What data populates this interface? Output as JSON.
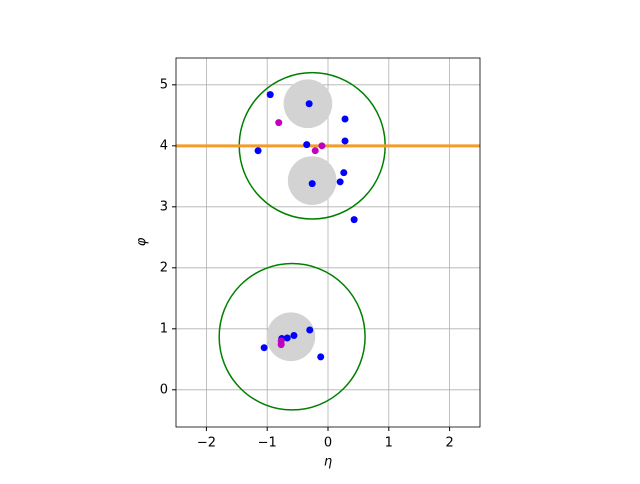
{
  "chart_data": {
    "type": "scatter",
    "xlabel": "η",
    "ylabel": "φ",
    "xlim": [
      -2.5,
      2.5
    ],
    "ylim": [
      -0.61,
      5.44
    ],
    "xticks": [
      {
        "value": -2,
        "label": "−2"
      },
      {
        "value": -1,
        "label": "−1"
      },
      0,
      1,
      2
    ],
    "yticks": [
      0,
      1,
      2,
      3,
      4,
      5
    ],
    "grid": true,
    "circles": [
      {
        "x": -0.33,
        "y": 4.69,
        "r": 0.4,
        "color": "#d3d3d3",
        "filled": true
      },
      {
        "x": -0.26,
        "y": 3.43,
        "r": 0.4,
        "color": "#d3d3d3",
        "filled": true
      },
      {
        "x": -0.61,
        "y": 0.87,
        "r": 0.4,
        "color": "#d3d3d3",
        "filled": true
      },
      {
        "x": -0.26,
        "y": 4.0,
        "r": 1.2,
        "color": "#008000",
        "filled": false
      },
      {
        "x": -0.59,
        "y": 0.87,
        "r": 1.2,
        "color": "#008000",
        "filled": false
      }
    ],
    "hline": {
      "y": 4.0,
      "color": "#f39c29"
    },
    "series": [
      {
        "color": "#0000ff",
        "x": [
          -0.95,
          -0.31,
          0.28,
          0.28,
          -0.35,
          -1.15,
          0.26,
          0.2,
          -0.26,
          0.43,
          -0.3,
          -0.56,
          -0.67,
          -0.76,
          -1.05,
          -0.12
        ],
        "values": [
          4.84,
          4.69,
          4.44,
          4.08,
          4.02,
          3.92,
          3.56,
          3.41,
          3.38,
          2.79,
          0.98,
          0.89,
          0.85,
          0.84,
          0.69,
          0.54
        ]
      },
      {
        "color": "#c000c0",
        "x": [
          -0.81,
          -0.1,
          -0.21,
          -0.77,
          -0.77
        ],
        "values": [
          4.38,
          4.0,
          3.92,
          0.8,
          0.74
        ]
      }
    ]
  }
}
